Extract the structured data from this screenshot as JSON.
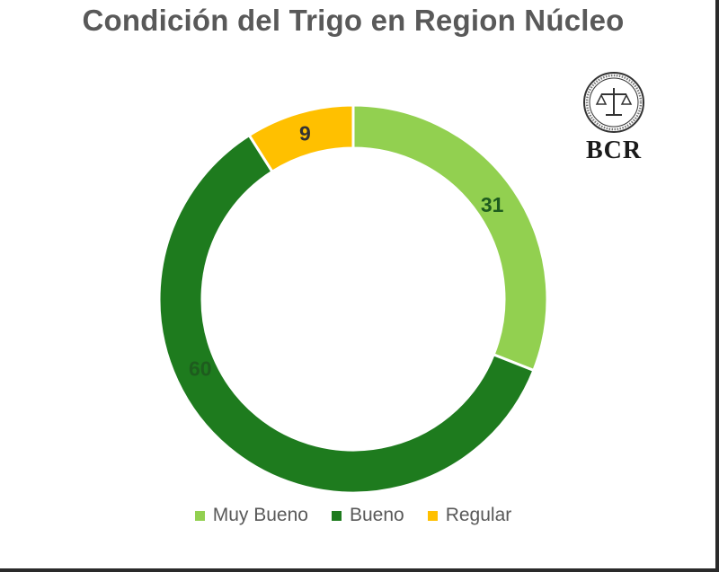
{
  "chart_data": {
    "type": "pie",
    "title": "Condición del Trigo en Region Núcleo",
    "categories": [
      "Muy Bueno",
      "Bueno",
      "Regular"
    ],
    "values": [
      31,
      60,
      9
    ],
    "colors": [
      "#92d050",
      "#1e7b1e",
      "#ffc000"
    ],
    "legend": "bottom"
  },
  "logo": {
    "text": "BCR"
  }
}
